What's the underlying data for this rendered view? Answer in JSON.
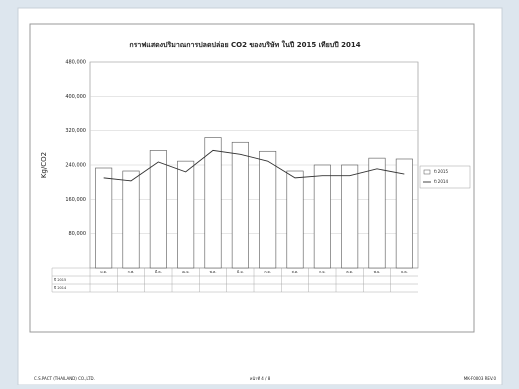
{
  "chart_data": {
    "type": "bar",
    "title": "กราฟแสดงปริมาณการปลดปล่อย CO2 ของบริษัท ในปี 2015 เทียบปี 2014",
    "y_label": "Kg/CO2",
    "categories": [
      "ม.ค.",
      "ก.พ.",
      "มี.ค.",
      "เม.ย.",
      "พ.ค.",
      "มิ.ย.",
      "ก.ค.",
      "ส.ค.",
      "ก.ย.",
      "ต.ค.",
      "พ.ย.",
      "ธ.ค."
    ],
    "series": [
      {
        "name": "ปี 2015",
        "type": "bar",
        "color": "#ffffff",
        "values": [
          233000,
          226000,
          274000,
          249000,
          304000,
          293000,
          272000,
          226000,
          240000,
          240000,
          256000,
          254000
        ]
      },
      {
        "name": "ปี 2014",
        "type": "line",
        "color": "#333333",
        "values": [
          210000,
          203000,
          247000,
          224000,
          274000,
          265000,
          249000,
          210000,
          215000,
          215000,
          231000,
          219000
        ]
      }
    ],
    "ylim": [
      0,
      480000
    ],
    "yticks": [
      {
        "value": 80000,
        "label": "80,000"
      },
      {
        "value": 160000,
        "label": "160,000"
      },
      {
        "value": 240000,
        "label": "240,000"
      },
      {
        "value": 320000,
        "label": "320,000"
      },
      {
        "value": 400000,
        "label": "400,000"
      },
      {
        "value": 480000,
        "label": "480,000"
      }
    ],
    "grid": true
  },
  "footer": {
    "left": "C.S.PACT (THAILAND) CO.,LTD.",
    "center": "หน้าที่ 4 / 8",
    "right": "MK-F0003 REV.0"
  }
}
